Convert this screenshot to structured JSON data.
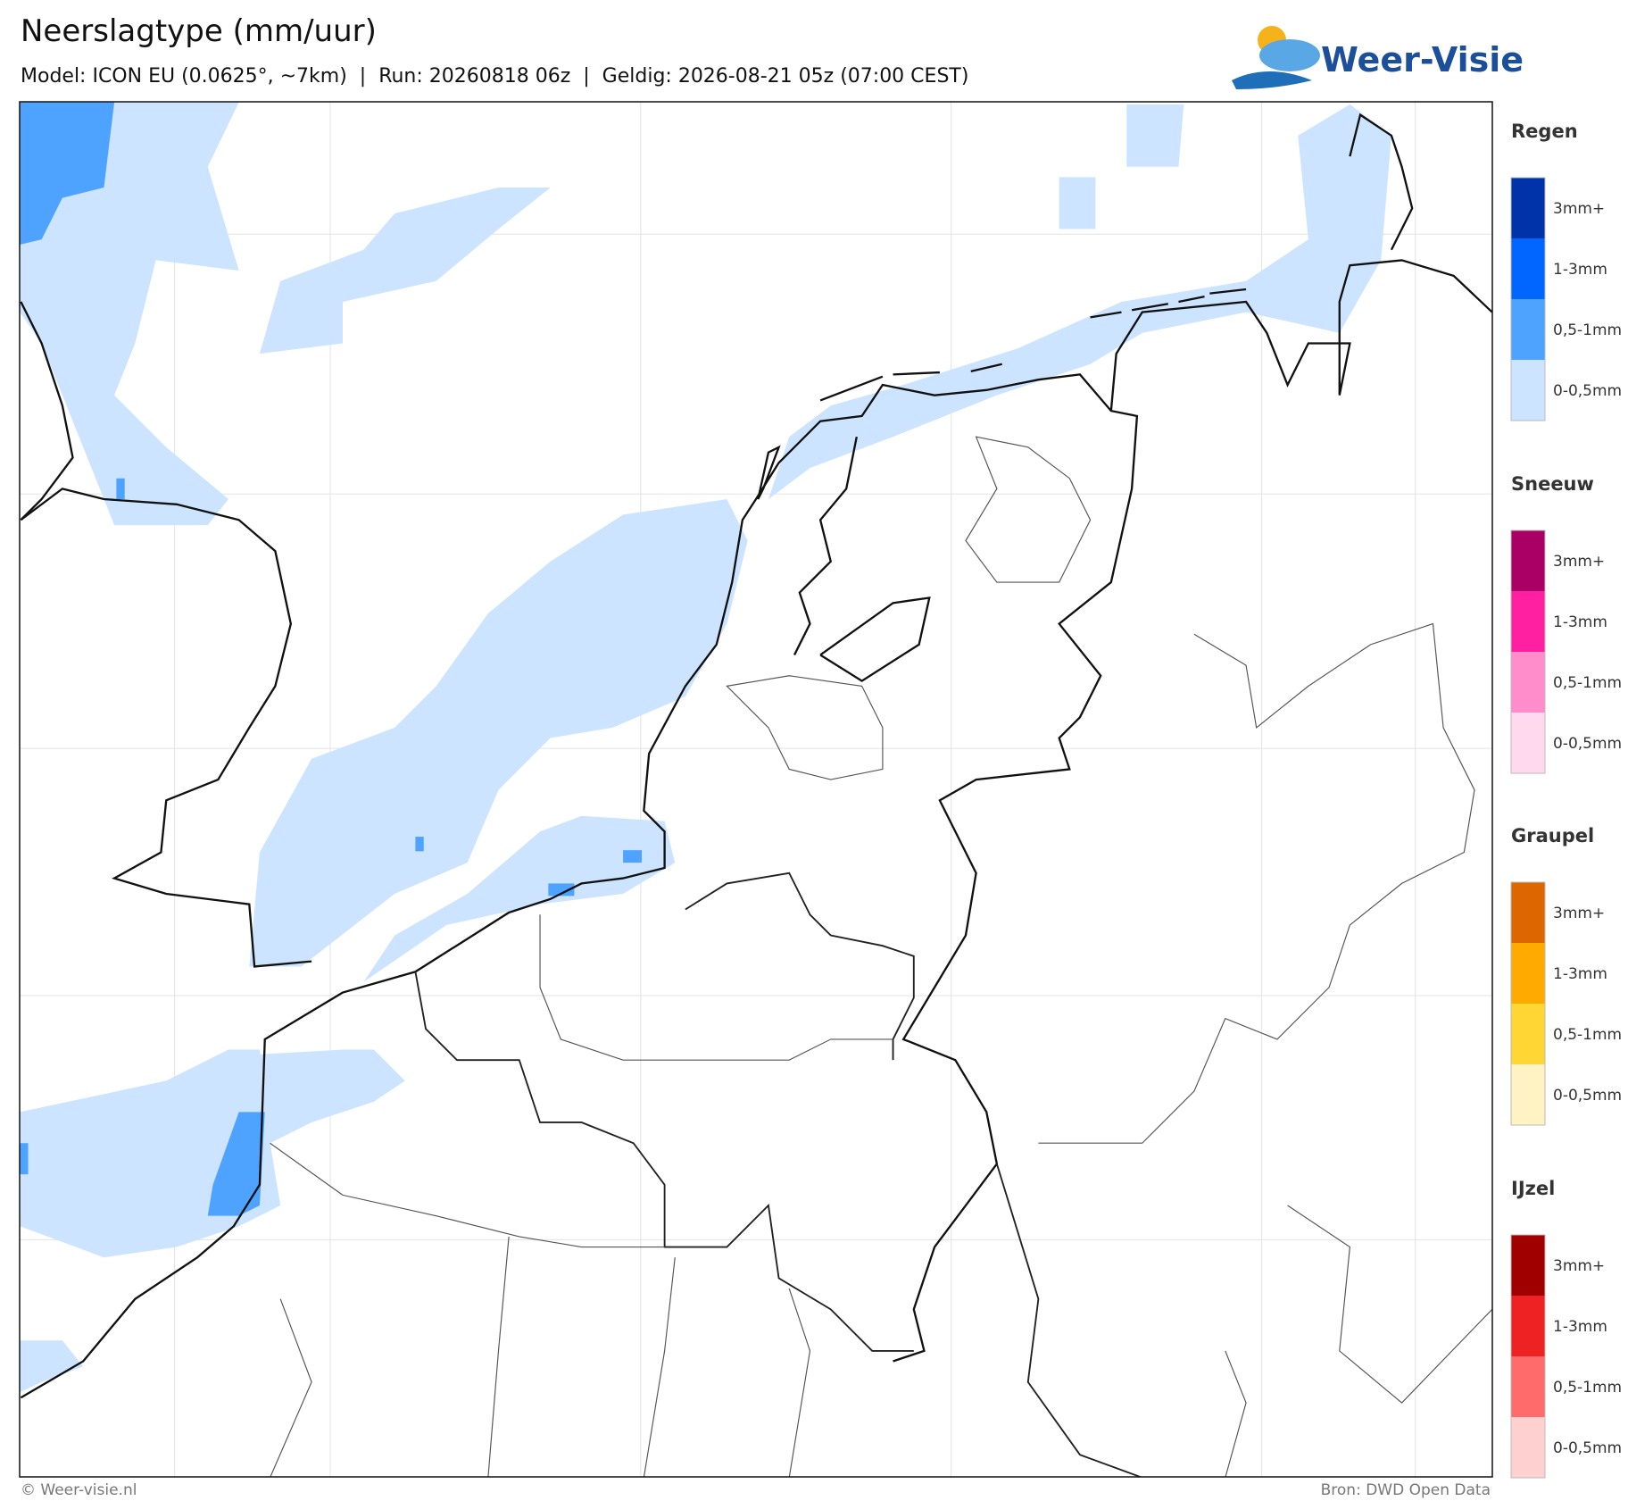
{
  "header": {
    "title": "Neerslagtype (mm/uur)",
    "subtitle": "Model: ICON EU (0.0625°, ~7km)  |  Run: 20260818 06z  |  Geldig: 2026-08-21 05z (07:00 CEST)",
    "logo": "Weer-Visie"
  },
  "legend": [
    {
      "title": "Regen",
      "items": [
        {
          "label": "3mm+",
          "color": "#0033aa"
        },
        {
          "label": "1-3mm",
          "color": "#0066ff"
        },
        {
          "label": "0,5-1mm",
          "color": "#4da3ff"
        },
        {
          "label": "0-0,5mm",
          "color": "#cce4ff"
        }
      ]
    },
    {
      "title": "Sneeuw",
      "items": [
        {
          "label": "3mm+",
          "color": "#aa0066"
        },
        {
          "label": "1-3mm",
          "color": "#ff1fa0"
        },
        {
          "label": "0,5-1mm",
          "color": "#ff8dcc"
        },
        {
          "label": "0-0,5mm",
          "color": "#ffd9ee"
        }
      ]
    },
    {
      "title": "Graupel",
      "items": [
        {
          "label": "3mm+",
          "color": "#dd6600"
        },
        {
          "label": "1-3mm",
          "color": "#ffaa00"
        },
        {
          "label": "0,5-1mm",
          "color": "#ffd633"
        },
        {
          "label": "0-0,5mm",
          "color": "#fff3c4"
        }
      ]
    },
    {
      "title": "IJzel",
      "items": [
        {
          "label": "3mm+",
          "color": "#a00000"
        },
        {
          "label": "1-3mm",
          "color": "#ee2222"
        },
        {
          "label": "0,5-1mm",
          "color": "#ff6b6b"
        },
        {
          "label": "0-0,5mm",
          "color": "#ffd0d0"
        }
      ]
    }
  ],
  "footer": {
    "left": "© Weer-visie.nl",
    "right": "Bron: DWD Open Data"
  }
}
